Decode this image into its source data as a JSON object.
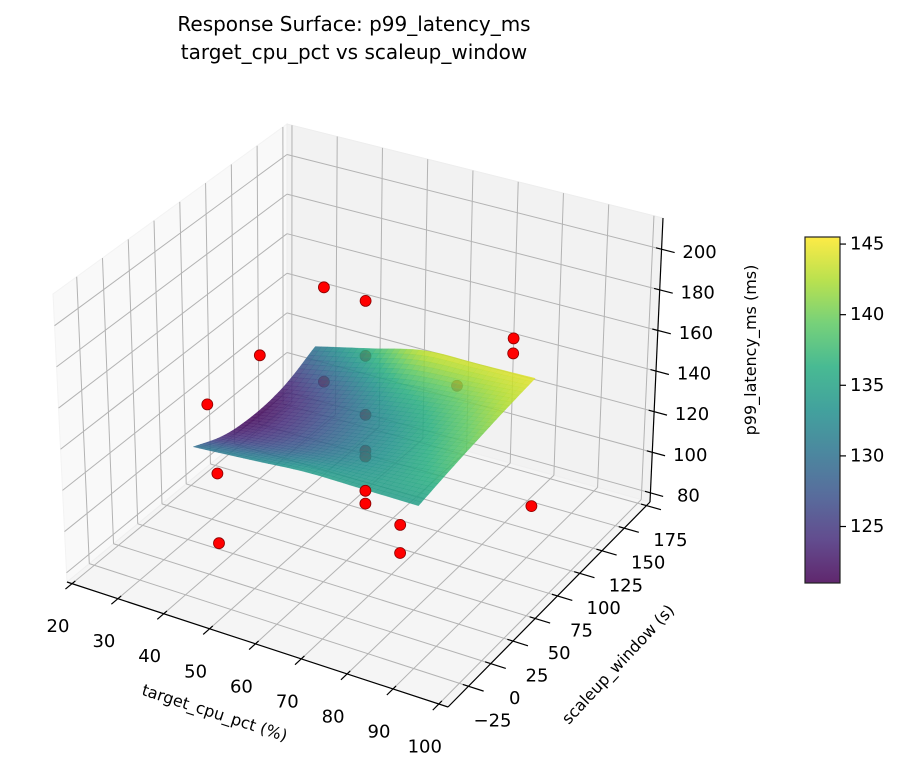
{
  "chart_data": {
    "type": "surface3d",
    "title": "Response Surface: p99_latency_ms",
    "subtitle": "target_cpu_pct vs scaleup_window",
    "xlabel": "target_cpu_pct (%)",
    "ylabel": "scaleup_window (s)",
    "zlabel": "p99_latency_ms (ms)",
    "xlim": [
      18.9,
      102
    ],
    "ylim": [
      -48,
      179
    ],
    "zlim": [
      75.5,
      215.4
    ],
    "xticks": [
      20,
      30,
      40,
      50,
      60,
      70,
      80,
      90,
      100
    ],
    "xtick_labels": [
      "20",
      "30",
      "40",
      "50",
      "60",
      "70",
      "80",
      "90",
      "100"
    ],
    "yticks": [
      -25,
      0,
      25,
      50,
      75,
      100,
      125,
      150,
      175
    ],
    "ytick_labels": [
      "−25",
      "0",
      "25",
      "50",
      "75",
      "100",
      "125",
      "150",
      "175"
    ],
    "zticks": [
      80,
      100,
      120,
      140,
      160,
      180,
      200
    ],
    "ztick_labels": [
      "80",
      "100",
      "120",
      "140",
      "160",
      "180",
      "200"
    ],
    "grid": true,
    "view": {
      "elev": 30,
      "azim": -60
    },
    "colormap": "viridis",
    "colorbar": {
      "range": [
        121.0,
        145.5
      ],
      "ticks": [
        125,
        130,
        135,
        140,
        145
      ],
      "tick_labels": [
        "125",
        "130",
        "135",
        "140",
        "145"
      ]
    },
    "surface": {
      "alpha": 0.85,
      "x": [
        35,
        47.25,
        59.5,
        71.75,
        84
      ],
      "y": [
        10,
        41.25,
        72.5,
        103.75,
        135
      ],
      "z": [
        [
          130.1,
          132.2,
          134.4,
          134.5,
          134.5
        ],
        [
          123.5,
          126.9,
          130.7,
          134.1,
          137.5
        ],
        [
          121.5,
          126.0,
          131.0,
          135.6,
          140.1
        ],
        [
          123.5,
          128.9,
          135.2,
          138.8,
          142.5
        ],
        [
          130.4,
          136.9,
          143.3,
          143.9,
          144.5
        ]
      ]
    },
    "points": {
      "color": "#ff0000",
      "edge_color": "#8b0000",
      "data": [
        {
          "x": 38,
          "y": 130,
          "z": 163.7,
          "behind_surface": false
        },
        {
          "x": 59,
          "y": 75,
          "z": 191.5,
          "behind_surface": false
        },
        {
          "x": 38,
          "y": 65,
          "z": 155.5,
          "behind_surface": false
        },
        {
          "x": 24,
          "y": 75,
          "z": 118.3,
          "behind_surface": false
        },
        {
          "x": 38,
          "y": 20,
          "z": 115.2,
          "behind_surface": false
        },
        {
          "x": 38,
          "y": 20,
          "z": 81.2,
          "behind_surface": false
        },
        {
          "x": 59,
          "y": 75,
          "z": 164.6,
          "behind_surface": true
        },
        {
          "x": 38,
          "y": 130,
          "z": 116.7,
          "behind_surface": true
        },
        {
          "x": 59,
          "y": 75,
          "z": 135.8,
          "behind_surface": true
        },
        {
          "x": 59,
          "y": 75,
          "z": 118.2,
          "behind_surface": true
        },
        {
          "x": 59,
          "y": 75,
          "z": 115.3,
          "behind_surface": true
        },
        {
          "x": 79,
          "y": 75,
          "z": 162.6,
          "behind_surface": true
        },
        {
          "x": 80,
          "y": 130,
          "z": 163.8,
          "behind_surface": false
        },
        {
          "x": 80,
          "y": 130,
          "z": 156.4,
          "behind_surface": false
        },
        {
          "x": 59,
          "y": 75,
          "z": 98.6,
          "behind_surface": false
        },
        {
          "x": 59,
          "y": 75,
          "z": 92.3,
          "behind_surface": false
        },
        {
          "x": 78,
          "y": 20,
          "z": 117.2,
          "behind_surface": false
        },
        {
          "x": 78,
          "y": 20,
          "z": 103.7,
          "behind_surface": false
        },
        {
          "x": 94,
          "y": 84,
          "z": 109.9,
          "behind_surface": false
        }
      ]
    }
  }
}
